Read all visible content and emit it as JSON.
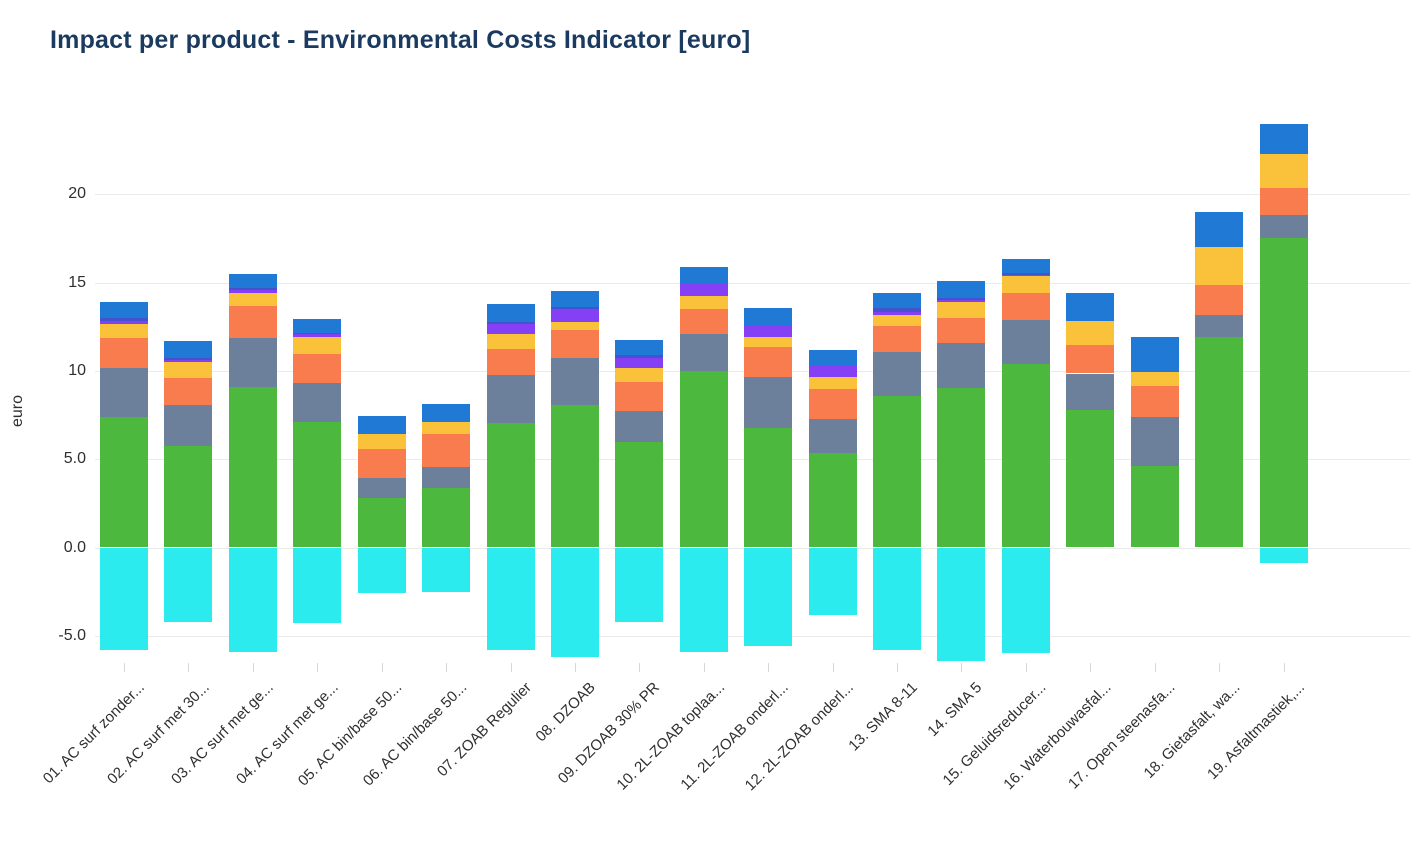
{
  "title": "Impact per product - Environmental Costs Indicator [euro]",
  "y_axis": {
    "title": "euro",
    "tick_labels": [
      "20",
      "15",
      "10",
      "5.0",
      "0.0",
      "-5.0"
    ],
    "tick_values": [
      20,
      15,
      10,
      5,
      0,
      -5
    ]
  },
  "chart_data": {
    "type": "bar",
    "stacked": true,
    "title": "Impact per product - Environmental Costs Indicator [euro]",
    "xlabel": "",
    "ylabel": "euro",
    "ylim": [
      -8,
      25
    ],
    "grid": true,
    "legend_position": "none",
    "categories": [
      "01. AC surf zonder...",
      "02. AC surf met 30...",
      "03. AC surf met ge...",
      "04. AC surf met ge...",
      "05. AC bin/base 50...",
      "06. AC bin/base 50...",
      "07. ZOAB Regulier",
      "08. DZOAB",
      "09. DZOAB 30% PR",
      "10. 2L-ZOAB toplaa...",
      "11. 2L-ZOAB onderl...",
      "12. 2L-ZOAB onderl...",
      "13. SMA 8-11",
      "14. SMA 5",
      "15. Geluidsreducer...",
      "16. Waterbouwasfal...",
      "17. Open steenasfa...",
      "18. Gietasfalt, wa...",
      "19. Asfaltmastiek,..."
    ],
    "series": [
      {
        "name": "green-segment",
        "color": "#4cb83e",
        "values": [
          7.4,
          5.75,
          9.1,
          7.1,
          2.8,
          3.35,
          7.05,
          8.05,
          6.0,
          10.0,
          6.75,
          5.35,
          8.55,
          9.05,
          10.4,
          7.8,
          4.6,
          11.9,
          17.5
        ]
      },
      {
        "name": "gray-segment",
        "color": "#6c7f9b",
        "values": [
          2.75,
          2.3,
          2.75,
          2.2,
          1.15,
          1.2,
          2.7,
          2.65,
          1.75,
          2.1,
          2.9,
          1.9,
          2.5,
          2.55,
          2.5,
          2.05,
          2.8,
          1.25,
          1.3
        ]
      },
      {
        "name": "orange-segment",
        "color": "#f87c4d",
        "values": [
          1.7,
          1.55,
          1.8,
          1.65,
          1.65,
          1.9,
          1.5,
          1.6,
          1.6,
          1.4,
          1.7,
          1.7,
          1.5,
          1.4,
          1.5,
          1.6,
          1.75,
          1.7,
          1.55
        ]
      },
      {
        "name": "yellow-segment",
        "color": "#f9c23a",
        "values": [
          0.8,
          0.9,
          0.75,
          0.95,
          0.8,
          0.65,
          0.85,
          0.45,
          0.8,
          0.75,
          0.55,
          0.7,
          0.6,
          0.9,
          0.95,
          1.35,
          0.8,
          2.15,
          1.95
        ]
      },
      {
        "name": "purple-segment",
        "color": "#8540f5",
        "values": [
          0.2,
          0.12,
          0.17,
          0.16,
          0,
          0,
          0.55,
          0.75,
          0.55,
          0.7,
          0.65,
          0.6,
          0.2,
          0.1,
          0.1,
          0,
          0,
          0,
          0
        ]
      },
      {
        "name": "indigo-segment",
        "color": "#4353cd",
        "values": [
          0.15,
          0.08,
          0.13,
          0.1,
          0,
          0,
          0.1,
          0.1,
          0.2,
          0,
          0,
          0,
          0.2,
          0.1,
          0.1,
          0,
          0,
          0,
          0
        ]
      },
      {
        "name": "blue-segment",
        "color": "#2079d5",
        "values": [
          0.9,
          1.0,
          0.8,
          0.8,
          1.05,
          1.0,
          1.05,
          0.9,
          0.85,
          0.95,
          1.0,
          0.95,
          0.85,
          1.0,
          0.8,
          1.6,
          1.95,
          2.0,
          1.7
        ]
      },
      {
        "name": "cyan-negative-segment",
        "color": "#2cebee",
        "values": [
          -5.8,
          -4.2,
          -5.9,
          -4.3,
          -2.55,
          -2.5,
          -5.8,
          -6.2,
          -4.2,
          -5.9,
          -5.6,
          -3.8,
          -5.8,
          -6.4,
          -6.0,
          0,
          0,
          0,
          -0.9
        ]
      }
    ],
    "totals_positive": [
      13.9,
      11.7,
      15.5,
      13.0,
      7.45,
      8.1,
      13.8,
      14.5,
      11.75,
      15.9,
      13.55,
      11.2,
      14.4,
      15.1,
      16.35,
      14.4,
      11.9,
      19.0,
      24.0
    ]
  },
  "colors": {
    "background": "#ffffff",
    "title_text": "#1b3a5f",
    "axis_text": "#2f2f2f",
    "gridline": "#ebebeb"
  }
}
